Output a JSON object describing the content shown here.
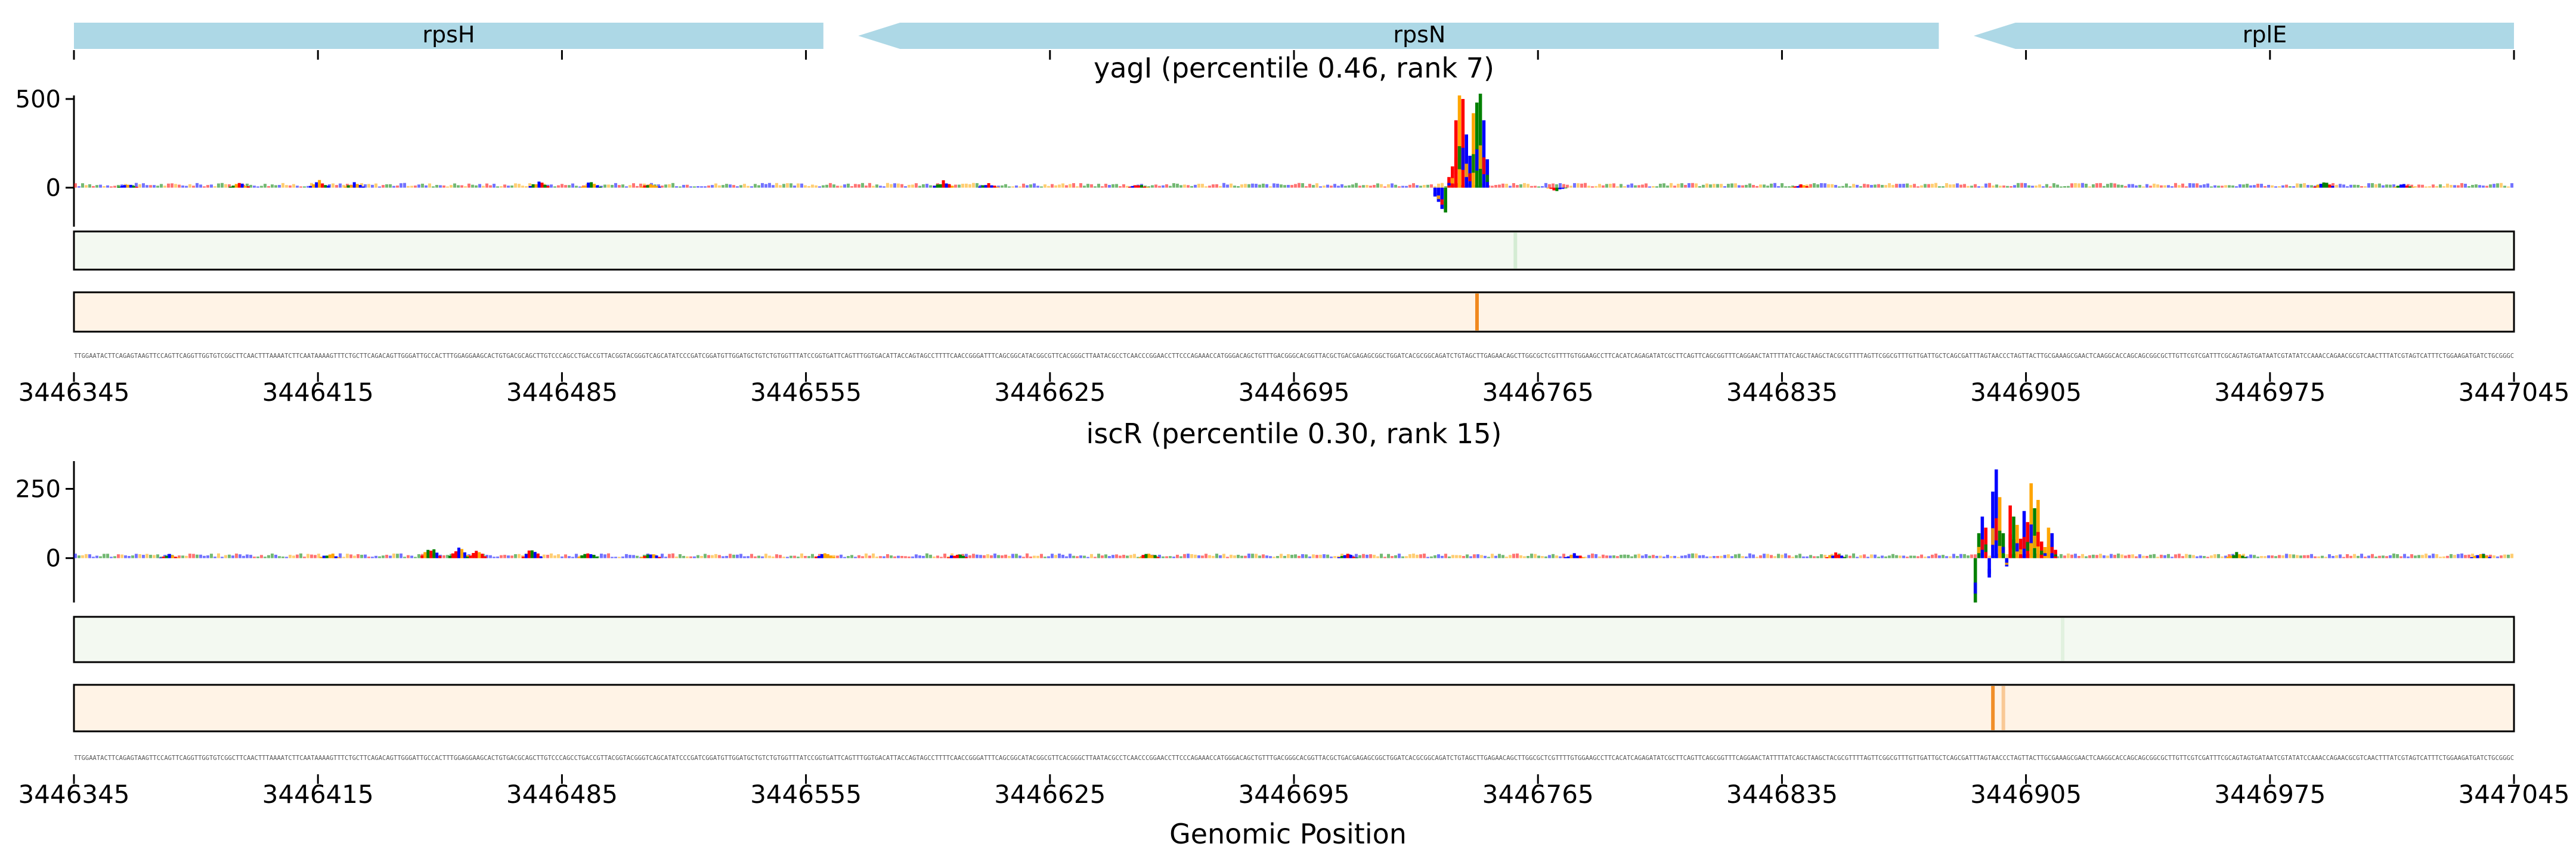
{
  "chart_data": {
    "type": "sequence-logo-track",
    "genes": [
      {
        "name": "rpsH",
        "start": 3446345,
        "end": 3446560,
        "strand": "+"
      },
      {
        "name": "rpsN",
        "start": 3446570,
        "end": 3446880,
        "strand": "-"
      },
      {
        "name": "rplE",
        "start": 3446890,
        "end": 3447045,
        "strand": "-"
      }
    ],
    "xlabel": "Genomic Position",
    "xlim": [
      3446345,
      3447045
    ],
    "xticks": [
      3446345,
      3446415,
      3446485,
      3446555,
      3446625,
      3446695,
      3446765,
      3446835,
      3446905,
      3446975,
      3447045
    ],
    "xtick_labels": [
      "3446345",
      "3446415",
      "3446485",
      "3446555",
      "3446625",
      "3446695",
      "3446765",
      "3446835",
      "3446905",
      "3446975",
      "3447045"
    ],
    "base_colors": {
      "A": "#008000",
      "C": "#0000ff",
      "G": "#ffa500",
      "T": "#ff0000"
    },
    "track_colors": {
      "green_bg": "#f3f9f1",
      "green_strong": "#9cd39c",
      "orange_bg": "#fff3e6",
      "orange_strong": "#f0881e"
    },
    "sequence": "TTGGAATACTTCAGAGTAAGTTCCAGTTCAGGTTGGTGTCGGCTTCAACTTTAAAATCTTCAATAAAAGTTTCTGCTTCAGACAGTTGGGATTGCCACTTTGGAGGAAGCACTGTGACGCAGCTTGTCCCAGCCTGACCGTTACGGTACGGGTCAGCATATCCCGATCGGATGTTGGATGCTGTCTGTGGTTTATCCGGTGATTCAGTTTGGTGACATTACCAGTAGCCTTTTCAACCGGGATTTCAGCGGCATACGGCGTTCACGGGCTTAATACGCCTCAACCCGGAACCTTCCCAGAAACCATGGGACAGCTGTTTGACGGGCACGGTTACGCTGACGAGAGCGGCTGGATCACGCGGCAGATCTGTAGCTTGAGAACAGCTTGGCGCTCGTTTTGTGGAAGCCTTCACATCAGAGATATCGCTTCAGTTCAGCGGTTTCAGGAACTATTTTATCAGCTAAGCTACGCGTTTTAGTTCGGCGTTTGTTGATTGCTCAGCGATTTAGTAACCCTAGTTACTTGCGAAAGCGAACTCAAGGCACCAGCAGCGGCGCTTGTTCGTCGATTTCGCAGTAGTGATAATCGTATATCCAAACCAGAACGCGTCAACTTTATCGTAGTCATTTCTGGAAGATGATCTGCGGGC",
    "panels": [
      {
        "title": "yagI (percentile 0.46, rank 7)",
        "ylim": [
          -220,
          520
        ],
        "yticks": [
          0,
          500
        ],
        "ytick_labels": [
          "0",
          "500"
        ],
        "peak": {
          "center": 3446743,
          "width": 16,
          "heights": [
            -50,
            -80,
            -120,
            -140,
            60,
            120,
            380,
            520,
            500,
            300,
            180,
            420,
            480,
            530,
            380,
            160
          ],
          "bases": [
            "C",
            "C",
            "C",
            "A",
            "T",
            "T",
            "T",
            "G",
            "T",
            "C",
            "C",
            "G",
            "A",
            "A",
            "C",
            "C"
          ]
        },
        "minor_peaks": [
          {
            "pos": 3446360,
            "height": 20
          },
          {
            "pos": 3446392,
            "height": 30
          },
          {
            "pos": 3446415,
            "height": 45
          },
          {
            "pos": 3446425,
            "height": 28
          },
          {
            "pos": 3446478,
            "height": 40
          },
          {
            "pos": 3446493,
            "height": 35
          },
          {
            "pos": 3446510,
            "height": 25
          },
          {
            "pos": 3446594,
            "height": 42
          },
          {
            "pos": 3446607,
            "height": 25
          },
          {
            "pos": 3446650,
            "height": 20
          },
          {
            "pos": 3446770,
            "height": -20
          },
          {
            "pos": 3446840,
            "height": 18
          },
          {
            "pos": 3446990,
            "height": 40
          },
          {
            "pos": 3447013,
            "height": 22
          }
        ],
        "track1_highlights": [
          {
            "pos": 3446758,
            "intensity": 0.35
          }
        ],
        "track2_highlights": [
          {
            "pos": 3446747,
            "intensity": 1.0
          }
        ]
      },
      {
        "title": "iscR (percentile 0.30, rank 15)",
        "ylim": [
          -160,
          350
        ],
        "yticks": [
          0,
          250
        ],
        "ytick_labels": [
          "0",
          "250"
        ],
        "peak": {
          "center": 3446902,
          "width": 24,
          "heights": [
            -160,
            90,
            150,
            110,
            -70,
            240,
            320,
            220,
            90,
            -30,
            190,
            150,
            120,
            70,
            170,
            130,
            270,
            180,
            210,
            60,
            40,
            110,
            90,
            30
          ],
          "bases": [
            "A",
            "A",
            "C",
            "T",
            "C",
            "C",
            "C",
            "G",
            "A",
            "C",
            "T",
            "A",
            "G",
            "T",
            "C",
            "T",
            "G",
            "A",
            "G",
            "T",
            "G",
            "G",
            "C",
            "T"
          ]
        },
        "minor_peaks": [
          {
            "pos": 3446372,
            "height": 15
          },
          {
            "pos": 3446418,
            "height": 20
          },
          {
            "pos": 3446447,
            "height": 40
          },
          {
            "pos": 3446455,
            "height": 45
          },
          {
            "pos": 3446460,
            "height": 30
          },
          {
            "pos": 3446476,
            "height": 35
          },
          {
            "pos": 3446492,
            "height": 25
          },
          {
            "pos": 3446510,
            "height": 20
          },
          {
            "pos": 3446560,
            "height": 20
          },
          {
            "pos": 3446598,
            "height": 18
          },
          {
            "pos": 3446653,
            "height": 22
          },
          {
            "pos": 3446710,
            "height": 15
          },
          {
            "pos": 3446775,
            "height": 18
          },
          {
            "pos": 3446850,
            "height": 20
          },
          {
            "pos": 3446965,
            "height": 22
          },
          {
            "pos": 3447035,
            "height": 18
          }
        ],
        "track1_highlights": [
          {
            "pos": 3446915,
            "intensity": 0.2
          }
        ],
        "track2_highlights": [
          {
            "pos": 3446895,
            "intensity": 0.95
          },
          {
            "pos": 3446898,
            "intensity": 0.4
          }
        ]
      }
    ]
  }
}
